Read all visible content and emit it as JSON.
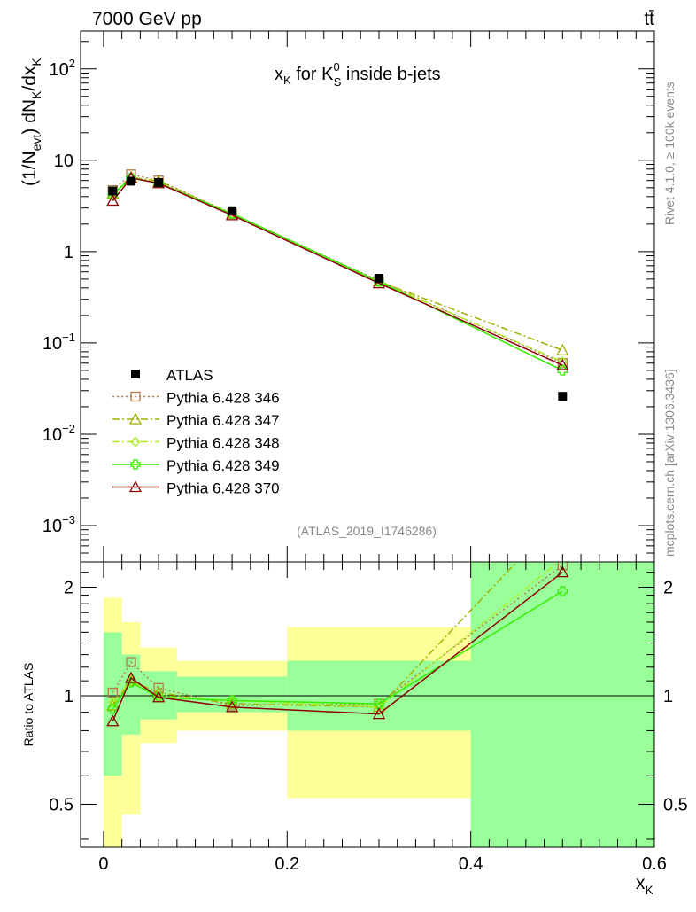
{
  "header": {
    "left": "7000 GeV pp",
    "right": "tt̄"
  },
  "watermark": {
    "version": "Rivet 4.1.0, ≥ 100k events",
    "source": "mcplots.cern.ch [arXiv:1306.3436]",
    "analysis": "(ATLAS_2019_I1746286)"
  },
  "chart_data": [
    {
      "type": "line",
      "title_main": "x",
      "title_sub": "K",
      "title_rest": " for K",
      "title_sup": "0",
      "title_sub2": "S",
      "title_tail": " inside b-jets",
      "ylabel": "(1/N_evt) dN_K/dx_K",
      "yscale": "log",
      "ylim": [
        0.0004,
        260
      ],
      "xlim": [
        -0.025,
        0.6
      ],
      "y_ticks": [
        {
          "v": 0.001,
          "b": "10",
          "e": "−3"
        },
        {
          "v": 0.01,
          "b": "10",
          "e": "−2"
        },
        {
          "v": 0.1,
          "b": "10",
          "e": "−1"
        },
        {
          "v": 1,
          "b": "1",
          "e": ""
        },
        {
          "v": 10,
          "b": "10",
          "e": ""
        },
        {
          "v": 100,
          "b": "10",
          "e": "2"
        }
      ],
      "data": {
        "name": "ATLAS",
        "x": [
          0.01,
          0.03,
          0.06,
          0.14,
          0.3,
          0.5
        ],
        "y": [
          4.6,
          5.9,
          5.7,
          2.8,
          0.51,
          0.026
        ]
      },
      "series": [
        {
          "name": "Pythia 6.428 346",
          "color": "#b07d48",
          "dash": "2,3",
          "marker": "square",
          "y": [
            4.7,
            7.0,
            6.0,
            2.6,
            0.48,
            0.06
          ]
        },
        {
          "name": "Pythia 6.428 347",
          "color": "#a0b000",
          "dash": "8,3,2,3",
          "marker": "triangle",
          "y": [
            4.3,
            6.5,
            5.9,
            2.6,
            0.47,
            0.083
          ]
        },
        {
          "name": "Pythia 6.428 348",
          "color": "#aaee22",
          "dash": "8,3,2,3",
          "marker": "diamond",
          "y": [
            4.4,
            6.5,
            5.7,
            2.6,
            0.47,
            0.062
          ]
        },
        {
          "name": "Pythia 6.428 349",
          "color": "#33ee00",
          "dash": "",
          "marker": "cross",
          "y": [
            4.2,
            6.4,
            5.6,
            2.6,
            0.47,
            0.05
          ]
        },
        {
          "name": "Pythia 6.428 370",
          "color": "#8b0000",
          "dash": "",
          "marker": "triangle",
          "y": [
            3.6,
            6.4,
            5.6,
            2.5,
            0.45,
            0.057
          ]
        }
      ]
    },
    {
      "type": "line",
      "ylabel": "Ratio to ATLAS",
      "xlabel_main": "x",
      "xlabel_sub": "K",
      "yscale": "log",
      "ylim": [
        0.38,
        2.35
      ],
      "xlim": [
        -0.025,
        0.6
      ],
      "x_ticks": [
        0,
        0.2,
        0.4,
        0.6
      ],
      "x_tick_labels": [
        "0",
        "0.2",
        "0.4",
        "0.6"
      ],
      "y_ticks": [
        0.5,
        1,
        2
      ],
      "y_tick_labels": [
        "0.5",
        "1",
        "2"
      ],
      "bins": [
        {
          "x0": 0.0,
          "x1": 0.02,
          "g_lo": 0.6,
          "g_hi": 1.5,
          "y_lo": 0.3,
          "y_hi": 1.87
        },
        {
          "x0": 0.02,
          "x1": 0.04,
          "g_lo": 0.78,
          "g_hi": 1.3,
          "y_lo": 0.47,
          "y_hi": 1.6
        },
        {
          "x0": 0.04,
          "x1": 0.08,
          "g_lo": 0.86,
          "g_hi": 1.17,
          "y_lo": 0.74,
          "y_hi": 1.36
        },
        {
          "x0": 0.08,
          "x1": 0.2,
          "g_lo": 0.9,
          "g_hi": 1.13,
          "y_lo": 0.8,
          "y_hi": 1.25
        },
        {
          "x0": 0.2,
          "x1": 0.4,
          "g_lo": 0.8,
          "g_hi": 1.25,
          "y_lo": 0.52,
          "y_hi": 1.55
        },
        {
          "x0": 0.4,
          "x1": 0.6,
          "g_lo": 0.3,
          "g_hi": 3.0,
          "y_lo": 0.3,
          "y_hi": 3.0
        }
      ],
      "x": [
        0.01,
        0.03,
        0.06,
        0.14,
        0.3,
        0.5
      ],
      "series": [
        {
          "name": "Pythia 6.428 346",
          "y": [
            1.02,
            1.24,
            1.05,
            0.94,
            0.95,
            2.3
          ]
        },
        {
          "name": "Pythia 6.428 347",
          "y": [
            0.94,
            1.1,
            1.02,
            0.95,
            0.93,
            3.2
          ]
        },
        {
          "name": "Pythia 6.428 348",
          "y": [
            0.96,
            1.1,
            1.0,
            0.97,
            0.93,
            2.4
          ]
        },
        {
          "name": "Pythia 6.428 349",
          "y": [
            0.92,
            1.09,
            0.99,
            0.97,
            0.95,
            1.95
          ]
        },
        {
          "name": "Pythia 6.428 370",
          "y": [
            0.85,
            1.12,
            0.99,
            0.93,
            0.89,
            2.2
          ]
        }
      ]
    }
  ]
}
